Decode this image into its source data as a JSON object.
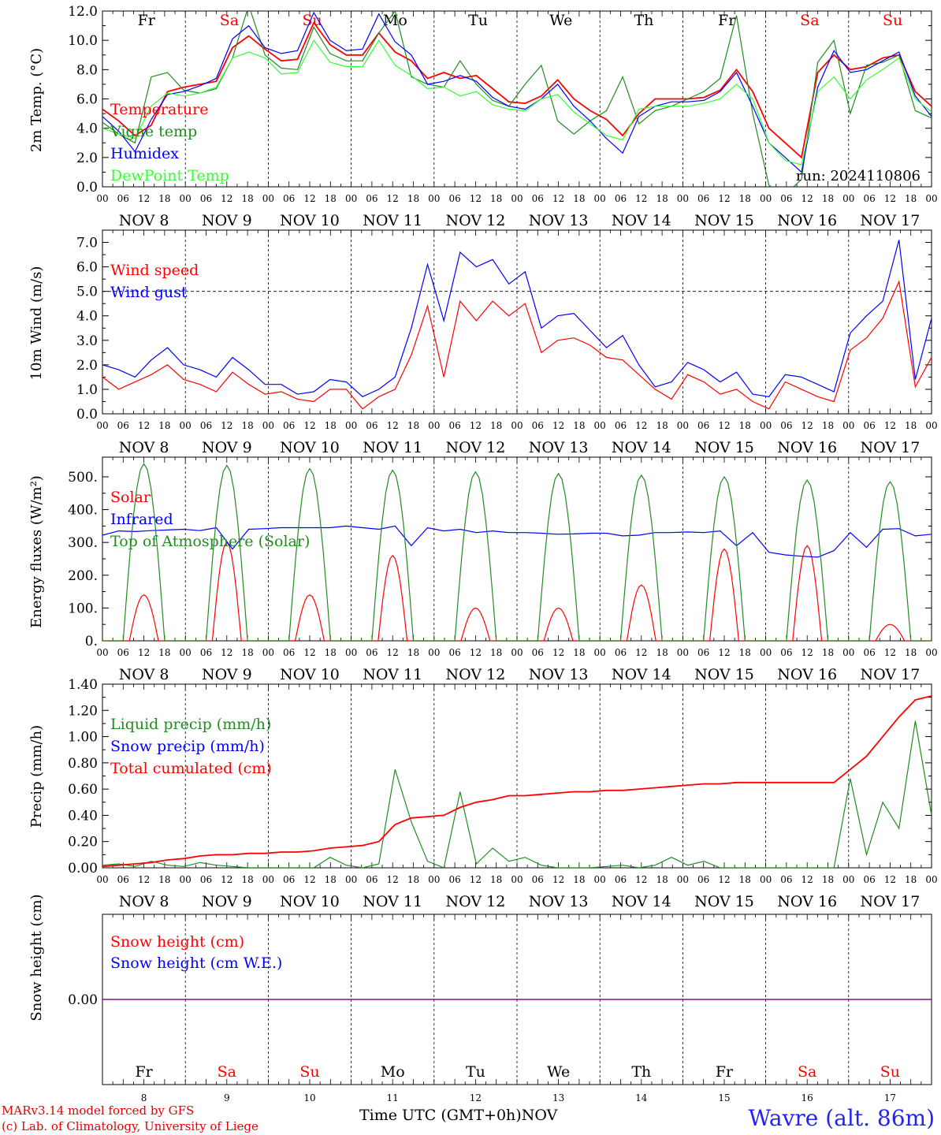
{
  "chart_data": [
    {
      "id": "temp",
      "type": "line",
      "ylabel": "2m Temp. (°C)",
      "ylim": [
        0,
        12
      ],
      "yticks": [
        "0.0",
        "2.0",
        "4.0",
        "6.0",
        "8.0",
        "10.0",
        "12.0"
      ],
      "day_labels": [
        "Fr",
        "Sa",
        "Su",
        "Mo",
        "Tu",
        "We",
        "Th",
        "Fr",
        "Sa",
        "Su"
      ],
      "annotation": "run: 2024110806",
      "series": [
        {
          "name": "Temperature",
          "color": "#ff0000",
          "values": [
            5.3,
            4.5,
            3.5,
            4.2,
            6.5,
            6.8,
            7.0,
            7.2,
            9.5,
            10.3,
            9.4,
            8.6,
            8.7,
            11.2,
            9.7,
            9.0,
            9.0,
            10.5,
            9.2,
            8.6,
            7.4,
            7.8,
            7.4,
            7.6,
            6.7,
            5.8,
            5.7,
            6.2,
            7.3,
            6.0,
            5.2,
            4.6,
            3.5,
            5.0,
            6.0,
            6.0,
            6.0,
            6.1,
            6.6,
            8.0,
            6.5,
            4.0,
            3.0,
            2.0,
            7.8,
            9.0,
            8.0,
            8.2,
            8.8,
            9.0,
            6.5,
            5.5
          ]
        },
        {
          "name": "Vigne temp",
          "color": "#228b22",
          "values": [
            4.4,
            3.6,
            3.0,
            7.5,
            7.8,
            6.6,
            6.4,
            6.7,
            8.8,
            12.4,
            9.0,
            8.1,
            8.0,
            10.9,
            9.1,
            8.6,
            8.6,
            10.5,
            12.0,
            7.5,
            7.0,
            6.8,
            8.6,
            7.0,
            5.9,
            5.5,
            7.0,
            8.3,
            4.5,
            3.6,
            4.5,
            5.2,
            7.5,
            4.3,
            5.2,
            5.5,
            6.0,
            6.5,
            7.4,
            11.7,
            5.0,
            0.1,
            -0.5,
            0.5,
            8.5,
            10.0,
            5.0,
            8.3,
            8.5,
            9.0,
            5.2,
            4.7
          ]
        },
        {
          "name": "Humidex",
          "color": "#0000ff",
          "values": [
            4.8,
            3.8,
            2.4,
            4.6,
            6.3,
            6.5,
            6.9,
            7.4,
            10.1,
            11.0,
            9.5,
            9.1,
            9.3,
            11.9,
            10.0,
            9.3,
            9.4,
            11.8,
            9.9,
            9.0,
            7.0,
            7.2,
            7.6,
            7.2,
            6.1,
            5.5,
            5.3,
            6.0,
            7.0,
            5.5,
            4.5,
            3.3,
            2.3,
            4.8,
            5.5,
            5.8,
            5.8,
            5.9,
            6.5,
            7.8,
            5.5,
            3.0,
            2.0,
            1.0,
            6.8,
            9.3,
            7.8,
            8.0,
            8.6,
            9.2,
            6.2,
            4.8
          ]
        },
        {
          "name": "DewPoint Temp",
          "color": "#33ff33",
          "values": [
            4.0,
            3.6,
            3.3,
            5.5,
            6.4,
            6.2,
            6.4,
            6.8,
            8.8,
            9.2,
            8.8,
            7.7,
            7.8,
            10.0,
            8.5,
            8.2,
            8.2,
            10.0,
            8.3,
            7.6,
            6.7,
            6.8,
            6.2,
            6.5,
            5.6,
            5.3,
            5.2,
            6.0,
            6.3,
            5.1,
            4.3,
            3.5,
            3.2,
            5.3,
            5.5,
            5.5,
            5.5,
            5.7,
            6.0,
            7.0,
            6.0,
            3.0,
            1.8,
            1.5,
            6.5,
            7.5,
            6.0,
            7.3,
            8.0,
            8.8,
            6.0,
            5.1
          ]
        }
      ]
    },
    {
      "id": "wind",
      "type": "line",
      "ylabel": "10m Wind (m/s)",
      "ylim": [
        0,
        7.5
      ],
      "yticks": [
        "0.0",
        "1.0",
        "2.0",
        "3.0",
        "4.0",
        "5.0",
        "6.0",
        "7.0"
      ],
      "reference_line": 5.0,
      "series": [
        {
          "name": "Wind speed",
          "color": "#ff0000",
          "values": [
            1.5,
            1.0,
            1.3,
            1.6,
            2.0,
            1.4,
            1.2,
            0.9,
            1.7,
            1.2,
            0.8,
            0.9,
            0.6,
            0.5,
            1.0,
            1.0,
            0.2,
            0.7,
            1.0,
            2.4,
            4.4,
            1.5,
            4.6,
            3.8,
            4.6,
            4.0,
            4.5,
            2.5,
            3.0,
            3.1,
            2.8,
            2.3,
            2.2,
            1.6,
            1.0,
            0.6,
            1.6,
            1.3,
            0.8,
            1.0,
            0.5,
            0.2,
            1.3,
            1.0,
            0.7,
            0.5,
            2.6,
            3.1,
            3.9,
            5.4,
            1.1,
            2.3
          ]
        },
        {
          "name": "Wind gust",
          "color": "#0000ff",
          "values": [
            2.0,
            1.8,
            1.5,
            2.2,
            2.7,
            2.0,
            1.8,
            1.5,
            2.3,
            1.8,
            1.2,
            1.2,
            0.8,
            0.9,
            1.4,
            1.3,
            0.7,
            1.0,
            1.5,
            3.5,
            6.1,
            3.8,
            6.6,
            6.0,
            6.3,
            5.3,
            5.8,
            3.5,
            4.0,
            4.1,
            3.4,
            2.7,
            3.2,
            2.0,
            1.1,
            1.3,
            2.1,
            1.8,
            1.3,
            1.7,
            0.8,
            0.7,
            1.6,
            1.5,
            1.2,
            0.9,
            3.3,
            4.0,
            4.6,
            7.1,
            1.4,
            3.9
          ]
        }
      ]
    },
    {
      "id": "flux",
      "type": "line",
      "ylabel": "Energy fluxes (W/m²)",
      "ylim": [
        0,
        560
      ],
      "yticks": [
        "0.",
        "100.",
        "200.",
        "300.",
        "400.",
        "500."
      ],
      "series": [
        {
          "name": "Solar",
          "color": "#ff0000",
          "day_peaks": [
            140,
            300,
            140,
            260,
            100,
            100,
            170,
            280,
            290,
            50
          ]
        },
        {
          "name": "Infrared",
          "color": "#0000ff",
          "values": [
            322,
            335,
            333,
            336,
            338,
            340,
            336,
            345,
            280,
            340,
            342,
            345,
            345,
            345,
            345,
            350,
            345,
            340,
            350,
            290,
            345,
            335,
            340,
            330,
            335,
            330,
            330,
            328,
            325,
            326,
            328,
            328,
            320,
            322,
            330,
            330,
            332,
            330,
            335,
            290,
            330,
            270,
            262,
            258,
            255,
            275,
            330,
            285,
            340,
            342,
            320,
            325
          ]
        },
        {
          "name": "Top of Atmosphere (Solar)",
          "color": "#228b22",
          "day_peaks": [
            540,
            535,
            525,
            520,
            515,
            510,
            505,
            500,
            490,
            485
          ]
        }
      ]
    },
    {
      "id": "precip",
      "type": "line",
      "ylabel": "Precip (mm/h)",
      "ylim": [
        0,
        1.4
      ],
      "yticks": [
        "0.00",
        "0.20",
        "0.40",
        "0.60",
        "0.80",
        "1.00",
        "1.20",
        "1.40"
      ],
      "series": [
        {
          "name": "Liquid precip (mm/h)",
          "color": "#228b22",
          "values": [
            0.02,
            0.03,
            0.01,
            0.05,
            0.02,
            0.01,
            0.04,
            0.02,
            0.01,
            0.0,
            0.0,
            0.0,
            0.0,
            0.0,
            0.08,
            0.02,
            0.0,
            0.03,
            0.75,
            0.35,
            0.05,
            0.0,
            0.58,
            0.03,
            0.15,
            0.05,
            0.08,
            0.02,
            0.0,
            0.0,
            0.0,
            0.01,
            0.02,
            0.0,
            0.02,
            0.08,
            0.02,
            0.05,
            0.0,
            0.0,
            0.0,
            0.0,
            0.0,
            0.0,
            0.0,
            0.0,
            0.68,
            0.1,
            0.5,
            0.3,
            1.12,
            0.4
          ]
        },
        {
          "name": "Snow precip (mm/h)",
          "color": "#0000ff",
          "values": []
        },
        {
          "name": "Total cumulated (cm)",
          "color": "#ff0000",
          "values": [
            0.01,
            0.02,
            0.03,
            0.04,
            0.06,
            0.07,
            0.09,
            0.1,
            0.1,
            0.11,
            0.11,
            0.12,
            0.12,
            0.13,
            0.15,
            0.16,
            0.17,
            0.2,
            0.33,
            0.38,
            0.39,
            0.4,
            0.46,
            0.5,
            0.52,
            0.55,
            0.55,
            0.56,
            0.57,
            0.58,
            0.58,
            0.59,
            0.59,
            0.6,
            0.61,
            0.62,
            0.63,
            0.64,
            0.64,
            0.65,
            0.65,
            0.65,
            0.65,
            0.65,
            0.65,
            0.65,
            0.75,
            0.85,
            1.0,
            1.15,
            1.28,
            1.31
          ]
        }
      ]
    },
    {
      "id": "snow",
      "type": "line",
      "ylabel": "Snow height (cm)",
      "yticks": [
        "0.00"
      ],
      "day_labels": [
        "Fr",
        "Sa",
        "Su",
        "Mo",
        "Tu",
        "We",
        "Th",
        "Fr",
        "Sa",
        "Su"
      ],
      "day_numbers": [
        "8",
        "9",
        "10",
        "11",
        "12",
        "13",
        "14",
        "15",
        "16",
        "17"
      ],
      "series": [
        {
          "name": "Snow height (cm)",
          "color": "#ff0000",
          "values": [
            0,
            0
          ]
        },
        {
          "name": "Snow height (cm W.E.)",
          "color": "#0000ff",
          "values": [
            0,
            0
          ]
        }
      ]
    }
  ],
  "x_axis": {
    "hour_labels": [
      "00",
      "06",
      "12",
      "18"
    ],
    "end_label": "00",
    "date_labels": [
      "NOV  8",
      "NOV  9",
      "NOV 10",
      "NOV 11",
      "NOV 12",
      "NOV 13",
      "NOV 14",
      "NOV 15",
      "NOV 16",
      "NOV 17"
    ],
    "weekend_color": "#ff0000",
    "weekday_color": "#000000",
    "weekend_days": [
      1,
      2,
      8,
      9
    ]
  },
  "footer": {
    "credit_1": "MARv3.14 model forced by GFS",
    "credit_2": "(c) Lab. of Climatology, University of Liege",
    "axis_title": "Time UTC (GMT+0h)",
    "month": "NOV",
    "station": "Wavre (alt. 86m)"
  }
}
